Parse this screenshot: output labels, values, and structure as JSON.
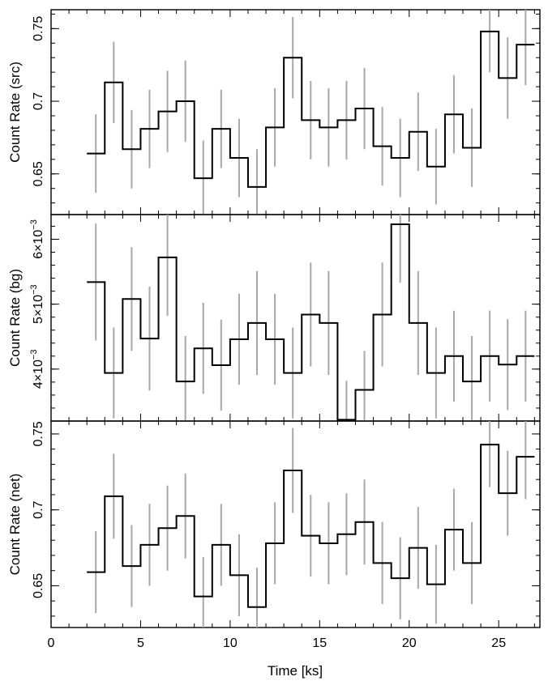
{
  "chart_data": {
    "type": "step",
    "shared_x": {
      "label": "Time [ks]",
      "range": [
        0,
        27.3
      ],
      "major_ticks": [
        0,
        5,
        10,
        15,
        20,
        25
      ],
      "tick_labels": [
        "0",
        "5",
        "10",
        "15",
        "20",
        "25"
      ],
      "bin_width": 1.0,
      "bin_centers": [
        2.5,
        3.5,
        4.5,
        5.5,
        6.5,
        7.5,
        8.5,
        9.5,
        10.5,
        11.5,
        12.5,
        13.5,
        14.5,
        15.5,
        16.5,
        17.5,
        18.5,
        19.5,
        20.5,
        21.5,
        22.5,
        23.5,
        24.5,
        25.5,
        26.5
      ]
    },
    "panels": [
      {
        "id": "src",
        "ylabel": "Count Rate (src)",
        "ylim": [
          0.622,
          0.763
        ],
        "major_ticks": [
          0.65,
          0.7,
          0.75
        ],
        "tick_labels": [
          "0.65",
          "0.7",
          "0.75"
        ],
        "minor_step": 0.01,
        "values": [
          0.664,
          0.713,
          0.667,
          0.681,
          0.693,
          0.7,
          0.647,
          0.681,
          0.661,
          0.641,
          0.682,
          0.73,
          0.687,
          0.682,
          0.687,
          0.695,
          0.669,
          0.661,
          0.679,
          0.655,
          0.691,
          0.668,
          0.748,
          0.716,
          0.739
        ],
        "errors": [
          0.027,
          0.028,
          0.027,
          0.027,
          0.028,
          0.028,
          0.026,
          0.027,
          0.027,
          0.026,
          0.027,
          0.028,
          0.027,
          0.027,
          0.027,
          0.028,
          0.027,
          0.027,
          0.027,
          0.026,
          0.027,
          0.027,
          0.028,
          0.028,
          0.028
        ]
      },
      {
        "id": "bg",
        "ylabel": "Count Rate (bg)",
        "ylim": [
          0.0032,
          0.00638
        ],
        "major_ticks": [
          0.004,
          0.005,
          0.006
        ],
        "tick_labels": [
          {
            "mantissa": "4×10",
            "exponent": "−3"
          },
          {
            "mantissa": "5×10",
            "exponent": "−3"
          },
          {
            "mantissa": "6×10",
            "exponent": "−3"
          }
        ],
        "minor_step": 0.0002,
        "values": [
          0.00534,
          0.00394,
          0.00508,
          0.00447,
          0.00572,
          0.00381,
          0.00432,
          0.00406,
          0.00446,
          0.00471,
          0.00446,
          0.00394,
          0.00484,
          0.00471,
          0.00322,
          0.00368,
          0.00484,
          0.00623,
          0.00471,
          0.00394,
          0.0042,
          0.00381,
          0.0042,
          0.00407,
          0.0042
        ],
        "errors": [
          0.0009,
          0.0007,
          0.0008,
          0.0008,
          0.0009,
          0.0007,
          0.0007,
          0.0007,
          0.0007,
          0.0008,
          0.0007,
          0.0007,
          0.0008,
          0.0008,
          0.0006,
          0.0006,
          0.0008,
          0.0009,
          0.0008,
          0.0007,
          0.0007,
          0.0007,
          0.0007,
          0.0007,
          0.0007
        ]
      },
      {
        "id": "net",
        "ylabel": "Count Rate (net)",
        "ylim": [
          0.6225,
          0.7585
        ],
        "major_ticks": [
          0.65,
          0.7,
          0.75
        ],
        "tick_labels": [
          "0.65",
          "0.7",
          "0.75"
        ],
        "minor_step": 0.01,
        "values": [
          0.659,
          0.709,
          0.663,
          0.677,
          0.688,
          0.696,
          0.643,
          0.677,
          0.657,
          0.636,
          0.678,
          0.726,
          0.683,
          0.678,
          0.684,
          0.692,
          0.665,
          0.655,
          0.675,
          0.651,
          0.687,
          0.665,
          0.743,
          0.711,
          0.735
        ],
        "errors": [
          0.027,
          0.028,
          0.027,
          0.027,
          0.028,
          0.028,
          0.026,
          0.027,
          0.027,
          0.026,
          0.027,
          0.028,
          0.027,
          0.027,
          0.027,
          0.028,
          0.027,
          0.027,
          0.027,
          0.026,
          0.027,
          0.027,
          0.028,
          0.028,
          0.028
        ]
      }
    ]
  }
}
